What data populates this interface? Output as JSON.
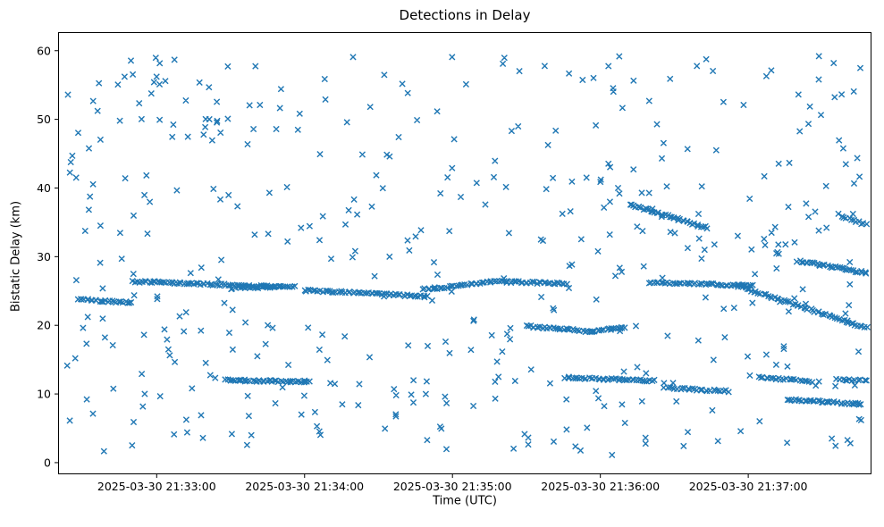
{
  "chart_data": {
    "type": "scatter",
    "title": "Detections in Delay",
    "xlabel": "Time (UTC)",
    "ylabel": "Bistatic Delay (km)",
    "marker": "x",
    "marker_color": "#1f77b4",
    "axes_edge_color": "#000000",
    "background_color": "#ffffff",
    "grid": false,
    "legend": false,
    "xlim_seconds": [
      0,
      330
    ],
    "x_axis_start_time": "2025-03-30 21:32:20",
    "x_axis_end_time": "2025-03-30 21:37:50",
    "ylim": [
      -1.7,
      62.7
    ],
    "x_ticks": [
      {
        "t": 40,
        "label": "2025-03-30 21:33:00"
      },
      {
        "t": 100,
        "label": "2025-03-30 21:34:00"
      },
      {
        "t": 160,
        "label": "2025-03-30 21:35:00"
      },
      {
        "t": 220,
        "label": "2025-03-30 21:36:00"
      },
      {
        "t": 280,
        "label": "2025-03-30 21:37:00"
      }
    ],
    "y_ticks": [
      0,
      10,
      20,
      30,
      40,
      50,
      60
    ],
    "tracks_comment": "dense detection streaks: [t_start_s, t_end_s, y_start_km, y_end_km, n_points]; t measured in seconds from x-axis left edge (21:32:20 UTC)",
    "tracks": [
      [
        8,
        30,
        23.8,
        23.3,
        26
      ],
      [
        30,
        90,
        26.4,
        25.6,
        70
      ],
      [
        70,
        96,
        25.4,
        25.7,
        28
      ],
      [
        100,
        150,
        25.1,
        24.2,
        55
      ],
      [
        68,
        102,
        12.0,
        11.8,
        42
      ],
      [
        148,
        176,
        25.2,
        26.3,
        30
      ],
      [
        176,
        206,
        26.4,
        26.1,
        34
      ],
      [
        190,
        216,
        19.9,
        19.1,
        32
      ],
      [
        216,
        230,
        19.1,
        19.7,
        16
      ],
      [
        206,
        242,
        12.4,
        11.9,
        40
      ],
      [
        232,
        263,
        37.6,
        34.2,
        40
      ],
      [
        240,
        282,
        26.2,
        25.8,
        46
      ],
      [
        276,
        328,
        25.7,
        19.6,
        58
      ],
      [
        300,
        328,
        29.4,
        27.6,
        34
      ],
      [
        246,
        272,
        10.9,
        10.4,
        26
      ],
      [
        284,
        306,
        12.5,
        11.8,
        22
      ],
      [
        296,
        326,
        9.2,
        8.5,
        36
      ],
      [
        316,
        328,
        12.1,
        12.0,
        12
      ],
      [
        317,
        328,
        36.1,
        34.6,
        12
      ]
    ],
    "noise": {
      "comment": "uniformly scattered clutter detections filling the axes",
      "count": 450,
      "seed": 42,
      "t_range": [
        3,
        327
      ],
      "y_range": [
        0.7,
        59.7
      ]
    }
  }
}
